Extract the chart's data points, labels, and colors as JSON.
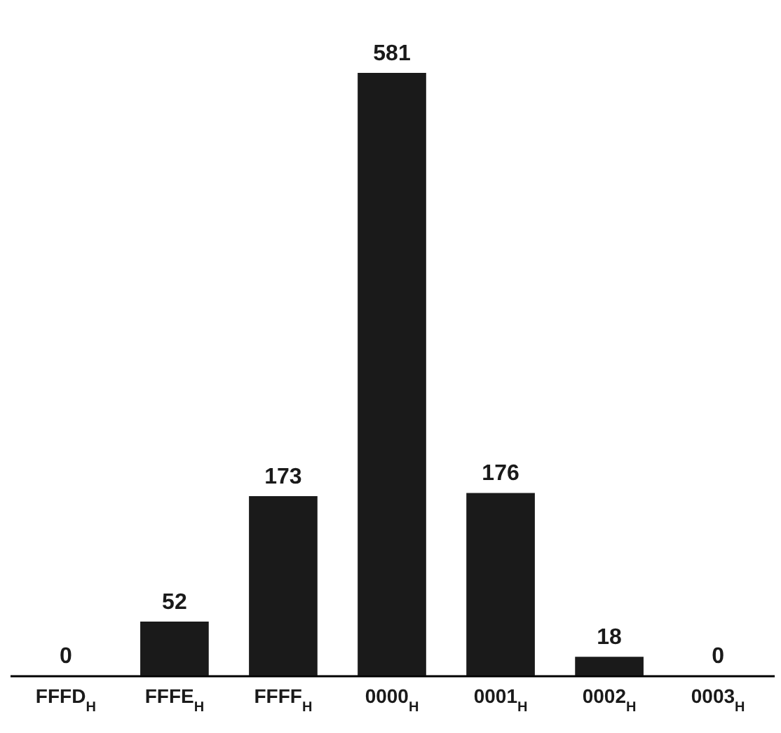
{
  "chart_data": {
    "type": "bar",
    "categories": [
      "FFFD$_{H}$",
      "FFFE$_{H}$",
      "FFFF$_{H}$",
      "0000$_{H}$",
      "0001$_{H}$",
      "0002$_{H}$",
      "0003$_{H}$"
    ],
    "values": [
      0,
      52,
      173,
      581,
      176,
      18,
      0
    ],
    "color": "#1a1a1a",
    "data_labels": true
  }
}
